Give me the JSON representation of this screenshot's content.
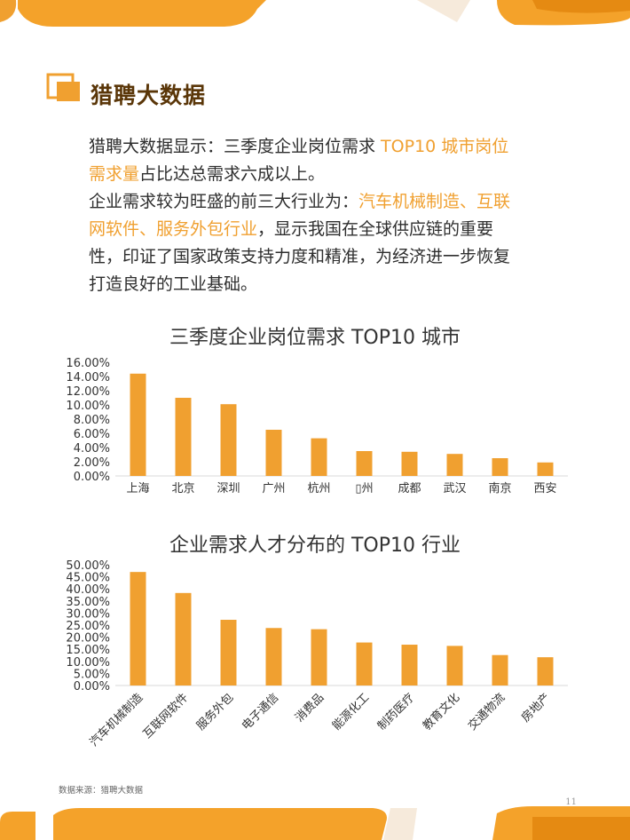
{
  "header": {
    "title": "猎聘大数据"
  },
  "intro": {
    "p1_pre": "猎聘大数据显示：三季度企业岗位需求 ",
    "p1_hl": "TOP10 城市岗位需求量",
    "p1_post": "占比达总需求六成以上。",
    "p2_pre": "企业需求较为旺盛的前三大行业为：",
    "p2_hl": "汽车机械制造、互联网软件、服务外包行业",
    "p2_post": "，显示我国在全球供应链的重要性，印证了国家政策支持力度和精准，为经济进一步恢复打造良好的工业基础。"
  },
  "colors": {
    "accent": "#f0a030",
    "bar": "#f0a030",
    "title_dark": "#5a3608"
  },
  "chart_data": [
    {
      "type": "bar",
      "title": "三季度企业岗位需求 TOP10 城市",
      "categories": [
        "上海",
        "北京",
        "深圳",
        "广州",
        "杭州",
        "▯州",
        "成都",
        "武汉",
        "南京",
        "西安"
      ],
      "values": [
        14.4,
        11.0,
        10.1,
        6.5,
        5.3,
        3.5,
        3.4,
        3.1,
        2.5,
        1.9
      ],
      "yticks": [
        "0.00%",
        "2.00%",
        "4.00%",
        "6.00%",
        "8.00%",
        "10.00%",
        "12.00%",
        "14.00%",
        "16.00%"
      ],
      "ylim": [
        0,
        16
      ],
      "grid": false,
      "label_rotation": 0
    },
    {
      "type": "bar",
      "title": "企业需求人才分布的 TOP10 行业",
      "categories": [
        "汽车机械制造",
        "互联网软件",
        "服务外包",
        "电子通信",
        "消费品",
        "能源化工",
        "制药医疗",
        "教育文化",
        "交通物流",
        "房地产"
      ],
      "values": [
        47.0,
        38.3,
        27.2,
        23.8,
        23.3,
        17.8,
        16.9,
        16.4,
        12.6,
        11.7
      ],
      "yticks": [
        "0.00%",
        "5.00%",
        "10.00%",
        "15.00%",
        "20.00%",
        "25.00%",
        "30.00%",
        "35.00%",
        "40.00%",
        "45.00%",
        "50.00%"
      ],
      "ylim": [
        0,
        50
      ],
      "grid": false,
      "label_rotation": -45
    }
  ],
  "footer": {
    "source": "数据来源：猎聘大数据",
    "page_number": "11"
  }
}
